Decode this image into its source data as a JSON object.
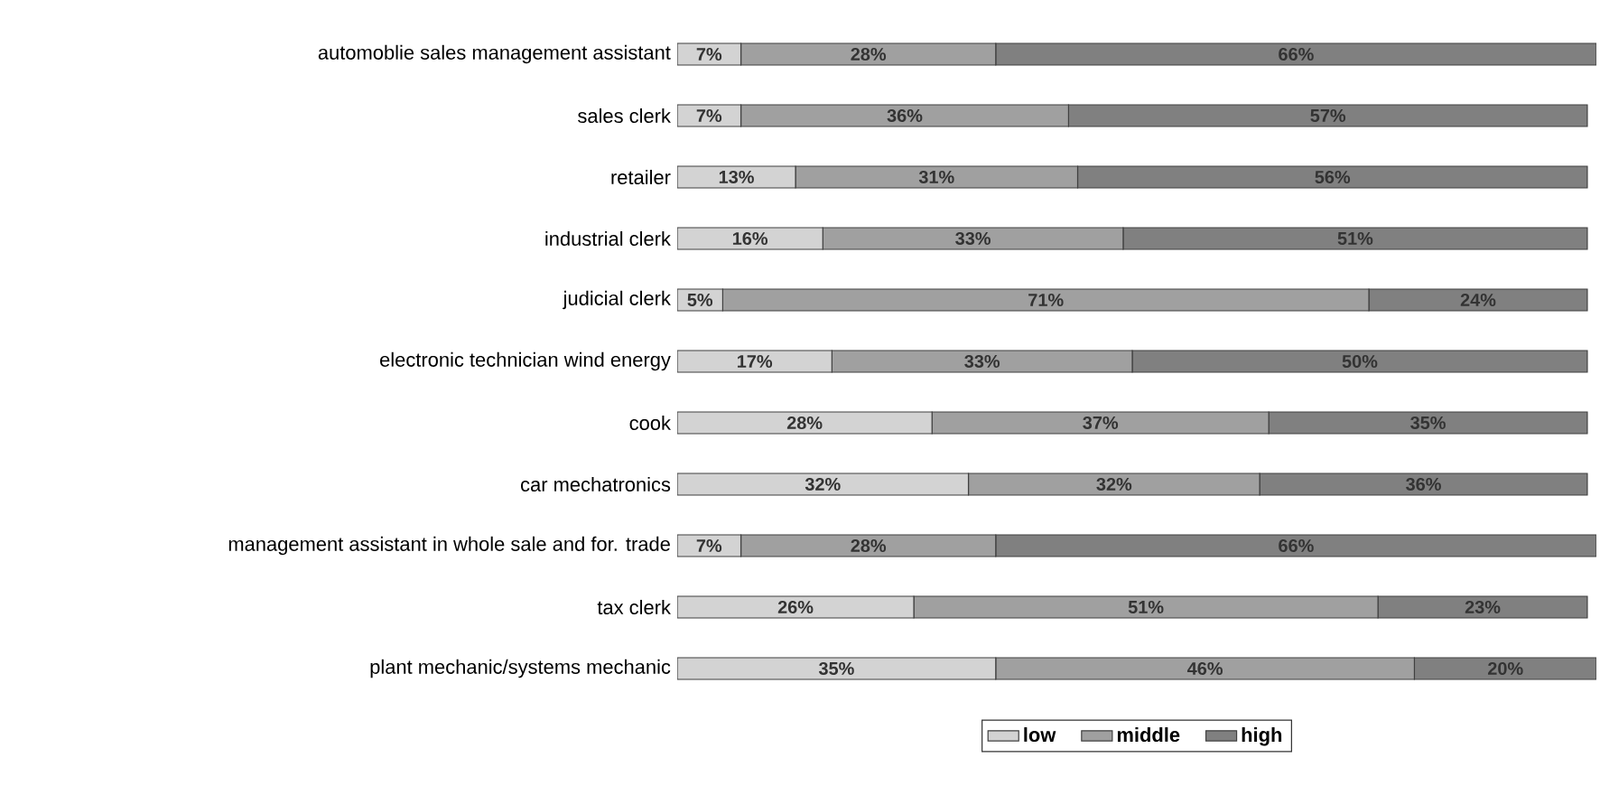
{
  "chart_data": {
    "type": "bar",
    "orientation": "horizontal",
    "stacked": true,
    "tick_labels": "y",
    "legend": "bottom",
    "xlim": [
      0,
      101
    ],
    "categories": [
      "automoblie sales management assistant",
      "sales clerk",
      "retailer",
      "industrial clerk",
      "judicial clerk",
      "electronic technician wind energy",
      "cook",
      "car mechatronics",
      "management assistant in whole sale and for. trade",
      "tax clerk",
      "plant mechanic/systems mechanic"
    ],
    "series": [
      {
        "name": "low",
        "color": "#d3d3d3",
        "values": [
          7,
          7,
          13,
          16,
          5,
          17,
          28,
          32,
          7,
          26,
          35
        ],
        "value_labels": [
          "7%",
          "7%",
          "13%",
          "16%",
          "5%",
          "17%",
          "28%",
          "32%",
          "7%",
          "26%",
          "35%"
        ]
      },
      {
        "name": "middle",
        "color": "#a0a0a0",
        "values": [
          28,
          36,
          31,
          33,
          71,
          33,
          37,
          32,
          28,
          51,
          46
        ],
        "value_labels": [
          "28%",
          "36%",
          "31%",
          "33%",
          "71%",
          "33%",
          "37%",
          "32%",
          "28%",
          "51%",
          "46%"
        ]
      },
      {
        "name": "high",
        "color": "#808080",
        "values": [
          66,
          57,
          56,
          51,
          24,
          50,
          35,
          36,
          66,
          23,
          20
        ],
        "value_labels": [
          "66%",
          "57%",
          "56%",
          "51%",
          "24%",
          "50%",
          "35%",
          "36%",
          "66%",
          "23%",
          "20%"
        ]
      }
    ]
  }
}
